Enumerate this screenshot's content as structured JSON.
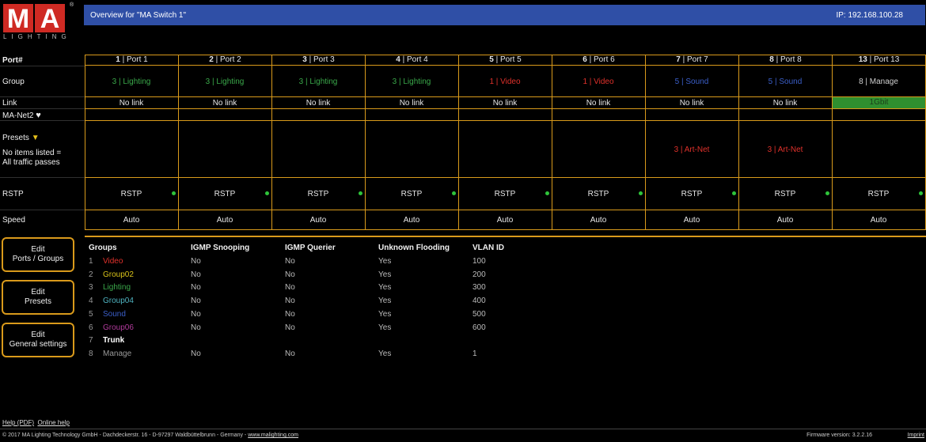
{
  "logo": {
    "letters": [
      "M",
      "A"
    ],
    "subtitle": "LIGHTING",
    "reg": "®"
  },
  "header": {
    "title": "Overview for \"MA Switch 1\"",
    "ip": "IP: 192.168.100.28"
  },
  "rows": {
    "port": "Port#",
    "group": "Group",
    "link": "Link",
    "manet": "MA-Net2",
    "presets": "Presets",
    "presets_note1": "No items listed =",
    "presets_note2": "All traffic passes",
    "rstp": "RSTP",
    "speed": "Speed"
  },
  "ports": [
    {
      "num": "1",
      "name": "Port 1",
      "group_num": "3",
      "group_name": "Lighting",
      "group_color": "#3aa84a",
      "link": "No link",
      "preset": "",
      "rstp": "RSTP",
      "speed": "Auto"
    },
    {
      "num": "2",
      "name": "Port 2",
      "group_num": "3",
      "group_name": "Lighting",
      "group_color": "#3aa84a",
      "link": "No link",
      "preset": "",
      "rstp": "RSTP",
      "speed": "Auto"
    },
    {
      "num": "3",
      "name": "Port 3",
      "group_num": "3",
      "group_name": "Lighting",
      "group_color": "#3aa84a",
      "link": "No link",
      "preset": "",
      "rstp": "RSTP",
      "speed": "Auto"
    },
    {
      "num": "4",
      "name": "Port 4",
      "group_num": "3",
      "group_name": "Lighting",
      "group_color": "#3aa84a",
      "link": "No link",
      "preset": "",
      "rstp": "RSTP",
      "speed": "Auto"
    },
    {
      "num": "5",
      "name": "Port 5",
      "group_num": "1",
      "group_name": "Video",
      "group_color": "#e0312b",
      "link": "No link",
      "preset": "",
      "rstp": "RSTP",
      "speed": "Auto"
    },
    {
      "num": "6",
      "name": "Port 6",
      "group_num": "1",
      "group_name": "Video",
      "group_color": "#e0312b",
      "link": "No link",
      "preset": "",
      "rstp": "RSTP",
      "speed": "Auto"
    },
    {
      "num": "7",
      "name": "Port 7",
      "group_num": "5",
      "group_name": "Sound",
      "group_color": "#3b5fc9",
      "link": "No link",
      "preset": "3 | Art-Net",
      "rstp": "RSTP",
      "speed": "Auto"
    },
    {
      "num": "8",
      "name": "Port 8",
      "group_num": "5",
      "group_name": "Sound",
      "group_color": "#3b5fc9",
      "link": "No link",
      "preset": "3 | Art-Net",
      "rstp": "RSTP",
      "speed": "Auto"
    },
    {
      "num": "13",
      "name": "Port 13",
      "group_num": "8",
      "group_name": "Manage",
      "group_color": "#cfcfcf",
      "link": "1Gbit",
      "preset": "",
      "rstp": "RSTP",
      "speed": "Auto"
    }
  ],
  "colors": {
    "accent": "#d99a1b",
    "header": "#2f4fa6",
    "link_up": "#2f8f2f",
    "preset_red": "#e0312b",
    "status_dot": "#2ec43a"
  },
  "buttons": {
    "ports_groups": [
      "Edit",
      "Ports / Groups"
    ],
    "presets": [
      "Edit",
      "Presets"
    ],
    "general": [
      "Edit",
      "General settings"
    ]
  },
  "groups_table": {
    "headers": [
      "Groups",
      "IGMP Snooping",
      "IGMP Querier",
      "Unknown Flooding",
      "VLAN ID"
    ],
    "rows": [
      {
        "num": "1",
        "name": "Video",
        "color": "#e0312b",
        "snoop": "No",
        "querier": "No",
        "flood": "Yes",
        "vlan": "100"
      },
      {
        "num": "2",
        "name": "Group02",
        "color": "#d8c21a",
        "snoop": "No",
        "querier": "No",
        "flood": "Yes",
        "vlan": "200"
      },
      {
        "num": "3",
        "name": "Lighting",
        "color": "#3aa84a",
        "snoop": "No",
        "querier": "No",
        "flood": "Yes",
        "vlan": "300"
      },
      {
        "num": "4",
        "name": "Group04",
        "color": "#4fb3c0",
        "snoop": "No",
        "querier": "No",
        "flood": "Yes",
        "vlan": "400"
      },
      {
        "num": "5",
        "name": "Sound",
        "color": "#3b5fc9",
        "snoop": "No",
        "querier": "No",
        "flood": "Yes",
        "vlan": "500"
      },
      {
        "num": "6",
        "name": "Group06",
        "color": "#b03a9b",
        "snoop": "No",
        "querier": "No",
        "flood": "Yes",
        "vlan": "600"
      },
      {
        "num": "7",
        "name": "Trunk",
        "color": "#ffffff",
        "snoop": "",
        "querier": "",
        "flood": "",
        "vlan": ""
      },
      {
        "num": "8",
        "name": "Manage",
        "color": "#9a9a9a",
        "snoop": "No",
        "querier": "No",
        "flood": "Yes",
        "vlan": "1"
      }
    ]
  },
  "footer": {
    "help": "Help (PDF)",
    "online": "Online help",
    "copyright": "© 2017 MA Lighting Technology GmbH - Dachdeckerstr. 16 - D-97297 Waldbüttelbrunn - Germany - ",
    "site": "www.malighting.com",
    "firmware": "Firmware version: 3.2.2.16",
    "imprint": "Imprint"
  }
}
